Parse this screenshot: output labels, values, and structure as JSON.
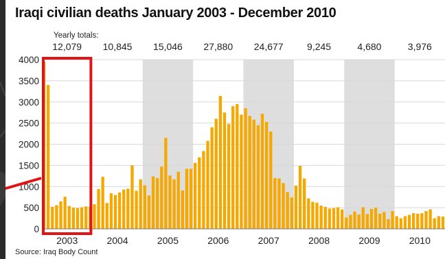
{
  "page": {
    "title": "Iraqi civilian deaths January 2003 - December 2010",
    "source": "Source: Iraq Body Count"
  },
  "colors": {
    "bar": "#f5a800",
    "band": "#dedede",
    "highlight": "#e01616",
    "grid": "#d8d8d8",
    "background": "#2a2a2a"
  },
  "chart_data": {
    "type": "bar",
    "title": "Iraqi civilian deaths January 2003 - December 2010",
    "xlabel": "",
    "ylabel": "",
    "ylim": [
      0,
      4000
    ],
    "yticks": [
      0,
      500,
      1000,
      1500,
      2000,
      2500,
      3000,
      3500,
      4000
    ],
    "grid": true,
    "yearly_totals_label": "Yearly totals:",
    "years": [
      {
        "label": "2003",
        "total": "12,079",
        "shaded": false,
        "highlighted": true
      },
      {
        "label": "2004",
        "total": "10,845",
        "shaded": false,
        "highlighted": false
      },
      {
        "label": "2005",
        "total": "15,046",
        "shaded": true,
        "highlighted": false
      },
      {
        "label": "2006",
        "total": "27,880",
        "shaded": false,
        "highlighted": false
      },
      {
        "label": "2007",
        "total": "24,677",
        "shaded": true,
        "highlighted": false
      },
      {
        "label": "2008",
        "total": "9,245",
        "shaded": false,
        "highlighted": false
      },
      {
        "label": "2009",
        "total": "4,680",
        "shaded": true,
        "highlighted": false
      },
      {
        "label": "2010",
        "total": "3,976",
        "shaded": false,
        "highlighted": false
      }
    ],
    "series": [
      {
        "values": [
          3950,
          3400,
          520,
          560,
          650,
          760,
          540,
          500,
          490,
          510,
          530,
          520,
          580,
          940,
          1230,
          610,
          840,
          800,
          860,
          930,
          950,
          1500,
          900,
          1170,
          1030,
          790,
          1240,
          1200,
          1470,
          2150,
          1260,
          1170,
          1350,
          910,
          1420,
          1420,
          1560,
          1690,
          1840,
          2080,
          2400,
          2600,
          3140,
          2750,
          2480,
          2900,
          2950,
          2700,
          2850,
          2670,
          2580,
          2450,
          2720,
          2530,
          2300,
          1200,
          1190,
          1080,
          870,
          740,
          1020,
          1490,
          1190,
          720,
          640,
          620,
          550,
          520,
          480,
          490,
          510,
          460,
          270,
          330,
          410,
          340,
          510,
          350,
          470,
          500,
          360,
          400,
          230,
          420,
          300,
          250,
          300,
          330,
          370,
          360,
          370,
          420,
          460,
          250,
          300,
          290
        ]
      }
    ]
  }
}
